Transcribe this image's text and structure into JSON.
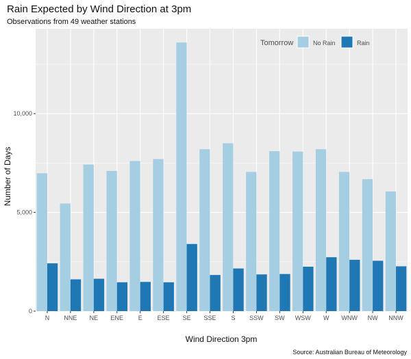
{
  "chart_data": {
    "type": "bar",
    "title": "Rain Expected by Wind Direction at 3pm",
    "subtitle": "Observations from 49 weather stations",
    "xlabel": "Wind Direction 3pm",
    "ylabel": "Number of Days",
    "caption": "Source: Australian Bureau of Meteorology",
    "categories": [
      "N",
      "NNE",
      "NE",
      "ENE",
      "E",
      "ESE",
      "SE",
      "SSE",
      "S",
      "SSW",
      "SW",
      "WSW",
      "W",
      "WNW",
      "NW",
      "NNW"
    ],
    "series": [
      {
        "name": "No Rain",
        "color": "#a6cee3",
        "values": [
          6980,
          5450,
          7420,
          7100,
          7600,
          7700,
          13600,
          8200,
          8500,
          7050,
          8100,
          8080,
          8200,
          7050,
          6680,
          6060
        ]
      },
      {
        "name": "Rain",
        "color": "#1f78b4",
        "values": [
          2420,
          1610,
          1640,
          1460,
          1480,
          1460,
          3400,
          1830,
          2160,
          1860,
          1880,
          2250,
          2730,
          2600,
          2550,
          2270
        ]
      }
    ],
    "ylim": [
      0,
      14300
    ],
    "yticks": [
      0,
      5000,
      10000
    ],
    "ytick_labels": [
      "0",
      "5,000",
      "10,000"
    ],
    "legend": {
      "title": "Tomorrow",
      "placement": "top-right",
      "entries": [
        "No Rain",
        "Rain"
      ]
    },
    "grid": true,
    "panel_color": "#ebebeb"
  }
}
